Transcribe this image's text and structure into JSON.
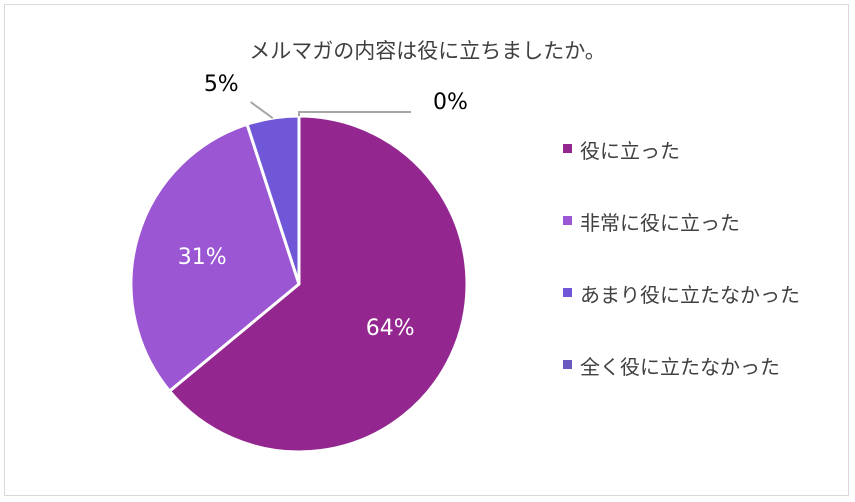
{
  "chart_data": {
    "type": "pie",
    "title": "メルマガの内容は役に立ちましたか。",
    "categories": [
      "役に立った",
      "非常に役に立った",
      "あまり役に立たなかった",
      "全く役に立たなかった"
    ],
    "values": [
      64,
      31,
      5,
      0
    ],
    "labels": [
      "64%",
      "31%",
      "5%",
      "0%"
    ],
    "colors": [
      "#93278f",
      "#9b57d3",
      "#7057d8",
      "#6a5ac0"
    ],
    "legend": "right"
  }
}
